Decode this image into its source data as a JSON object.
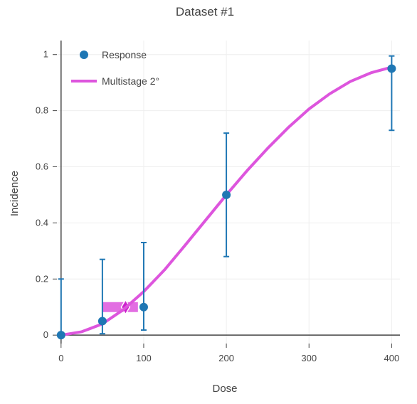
{
  "chart_data": {
    "type": "scatter",
    "title": "Dataset #1",
    "xlabel": "Dose",
    "ylabel": "Incidence",
    "xlim": [
      -5,
      410
    ],
    "ylim": [
      -0.03,
      1.05
    ],
    "x_ticks": [
      0,
      100,
      200,
      300,
      400
    ],
    "x_tick_labels": [
      "0",
      "100",
      "200",
      "300",
      "400"
    ],
    "y_ticks": [
      0,
      0.2,
      0.4,
      0.6,
      0.8,
      1
    ],
    "y_tick_labels": [
      "0",
      "0.2",
      "0.4",
      "0.6",
      "0.8",
      "1"
    ],
    "grid": true,
    "legend_position": "top-left",
    "series": [
      {
        "name": "Response",
        "kind": "points-with-error-bars",
        "color": "#1f77b4",
        "x": [
          0,
          50,
          100,
          200,
          400
        ],
        "y": [
          0,
          0.05,
          0.1,
          0.5,
          0.95
        ],
        "lower": [
          0,
          0.005,
          0.018,
          0.28,
          0.73
        ],
        "upper": [
          0.2,
          0.27,
          0.33,
          0.72,
          0.995
        ]
      },
      {
        "name": "Multistage 2°",
        "kind": "line",
        "color": "#dd55dd",
        "x": [
          0,
          25,
          50,
          75,
          100,
          125,
          150,
          175,
          200,
          225,
          250,
          275,
          300,
          325,
          350,
          375,
          400
        ],
        "y": [
          0,
          0.012,
          0.04,
          0.09,
          0.155,
          0.232,
          0.32,
          0.41,
          0.5,
          0.586,
          0.666,
          0.74,
          0.806,
          0.86,
          0.904,
          0.935,
          0.955
        ]
      }
    ],
    "bmd_marker": {
      "bmd": 78,
      "bmd_response": 0.1,
      "bmdl": 50,
      "bmdu": 93,
      "color": "#dd55dd"
    }
  }
}
